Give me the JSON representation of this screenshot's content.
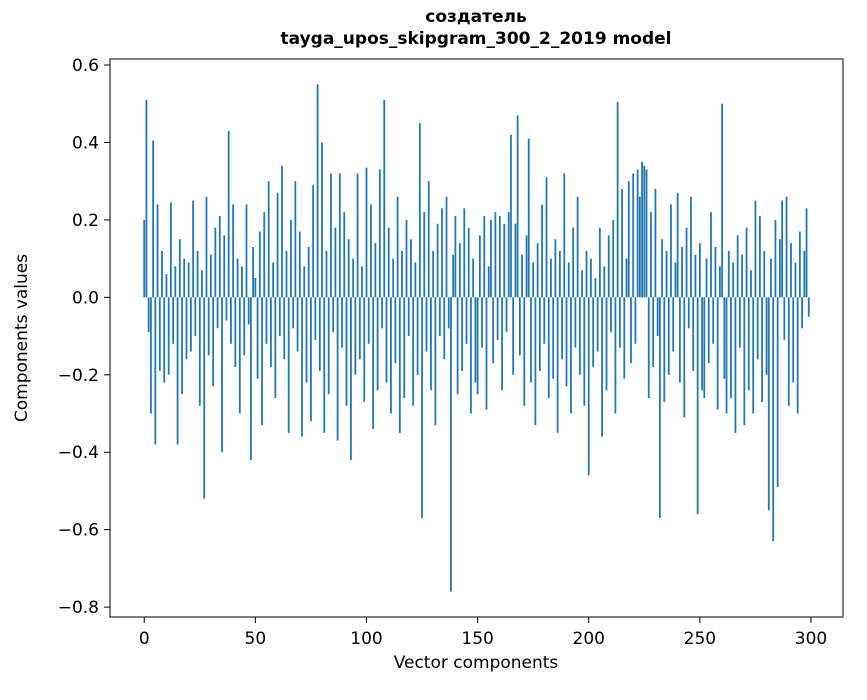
{
  "chart_data": {
    "type": "bar",
    "title_line1": "создатель",
    "title_line2": "tayga_upos_skipgram_300_2_2019 model",
    "xlabel": "Vector components",
    "ylabel": "Components values",
    "bar_color": "#1f77b4",
    "bar_width": 0.8,
    "xlim": [
      -15.4,
      314.4
    ],
    "ylim": [
      -0.8255,
      0.6155
    ],
    "x_ticks": [
      0,
      50,
      100,
      150,
      200,
      250,
      300
    ],
    "x_tick_labels": [
      "0",
      "50",
      "100",
      "150",
      "200",
      "250",
      "300"
    ],
    "y_ticks": [
      -0.8,
      -0.6,
      -0.4,
      -0.2,
      0.0,
      0.2,
      0.4,
      0.6
    ],
    "y_tick_labels": [
      "−0.8",
      "−0.6",
      "−0.4",
      "−0.2",
      "0.0",
      "0.2",
      "0.4",
      "0.6"
    ],
    "values": [
      0.2,
      0.51,
      -0.09,
      -0.3,
      0.405,
      -0.38,
      0.24,
      -0.19,
      0.12,
      -0.22,
      0.06,
      -0.2,
      0.245,
      -0.12,
      0.08,
      -0.38,
      0.15,
      -0.25,
      0.1,
      -0.16,
      0.09,
      -0.14,
      0.25,
      -0.1,
      0.12,
      -0.28,
      0.07,
      -0.52,
      0.26,
      -0.15,
      0.11,
      -0.23,
      0.18,
      -0.08,
      0.21,
      -0.4,
      0.16,
      -0.06,
      0.43,
      -0.12,
      0.24,
      -0.18,
      0.1,
      -0.3,
      0.08,
      -0.15,
      0.24,
      -0.07,
      -0.42,
      0.13,
      0.05,
      -0.21,
      0.17,
      -0.33,
      0.22,
      -0.12,
      0.3,
      -0.18,
      0.09,
      -0.26,
      0.27,
      -0.1,
      0.34,
      -0.16,
      0.12,
      -0.35,
      0.2,
      -0.08,
      0.3,
      -0.14,
      0.17,
      -0.36,
      0.08,
      -0.22,
      0.13,
      -0.32,
      0.29,
      -0.11,
      0.55,
      -0.19,
      0.4,
      -0.35,
      0.12,
      -0.25,
      0.32,
      -0.09,
      0.18,
      -0.37,
      0.32,
      -0.13,
      0.22,
      -0.28,
      0.15,
      -0.42,
      0.1,
      -0.2,
      0.32,
      -0.16,
      0.08,
      -0.27,
      0.335,
      -0.12,
      0.24,
      -0.34,
      0.14,
      -0.24,
      0.33,
      -0.08,
      0.51,
      -0.22,
      0.18,
      -0.3,
      0.1,
      -0.17,
      0.26,
      -0.35,
      0.12,
      -0.26,
      0.2,
      -0.1,
      0.15,
      -0.28,
      0.09,
      -0.2,
      0.45,
      -0.57,
      0.22,
      -0.14,
      0.3,
      -0.24,
      0.12,
      -0.33,
      0.19,
      -0.1,
      0.23,
      -0.16,
      0.26,
      -0.08,
      -0.76,
      0.11,
      0.21,
      -0.25,
      0.14,
      -0.19,
      0.23,
      -0.12,
      0.18,
      -0.3,
      0.1,
      -0.22,
      -0.25,
      0.16,
      -0.13,
      0.21,
      -0.29,
      0.08,
      0.2,
      -0.17,
      0.22,
      -0.11,
      0.21,
      -0.24,
      0.19,
      -0.09,
      0.22,
      0.42,
      -0.2,
      0.19,
      0.47,
      -0.15,
      0.11,
      -0.28,
      0.16,
      0.41,
      -0.22,
      0.09,
      -0.33,
      0.14,
      -0.19,
      0.24,
      -0.12,
      0.31,
      -0.26,
      0.1,
      -0.21,
      0.15,
      -0.35,
      0.12,
      -0.16,
      0.32,
      -0.23,
      0.09,
      -0.3,
      0.18,
      -0.13,
      0.26,
      -0.2,
      0.07,
      -0.28,
      0.12,
      -0.46,
      0.1,
      -0.18,
      0.05,
      -0.14,
      0.18,
      -0.36,
      0.08,
      -0.24,
      0.16,
      -0.09,
      0.2,
      -0.3,
      0.505,
      -0.13,
      0.28,
      -0.21,
      0.1,
      0.3,
      -0.17,
      0.32,
      -0.12,
      0.33,
      0.26,
      0.35,
      0.34,
      0.33,
      -0.26,
      0.22,
      -0.18,
      0.28,
      -0.1,
      -0.57,
      0.15,
      -0.27,
      0.12,
      -0.2,
      0.24,
      -0.14,
      0.09,
      0.27,
      -0.22,
      0.13,
      -0.31,
      0.18,
      -0.08,
      0.26,
      -0.19,
      0.11,
      -0.56,
      0.14,
      -0.24,
      -0.26,
      0.1,
      -0.17,
      0.22,
      -0.12,
      0.13,
      -0.29,
      0.08,
      0.5,
      -0.21,
      -0.3,
      0.12,
      -0.26,
      0.09,
      -0.35,
      0.16,
      -0.13,
      0.11,
      -0.33,
      0.18,
      -0.24,
      0.07,
      -0.3,
      0.25,
      -0.16,
      0.21,
      -0.27,
      0.12,
      -0.2,
      -0.55,
      0.1,
      -0.63,
      0.2,
      -0.49,
      0.15,
      0.25,
      -0.11,
      0.26,
      -0.28,
      0.14,
      -0.22,
      0.09,
      -0.3,
      0.17,
      -0.08,
      0.12,
      0.23,
      -0.05
    ]
  }
}
